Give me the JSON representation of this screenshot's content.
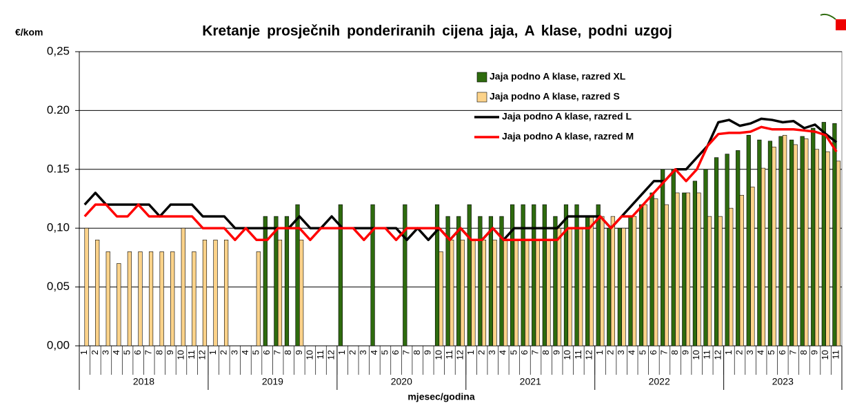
{
  "chart_data": {
    "type": "bar_line",
    "title": "Kretanje prosječnih ponderiranih cijena jaja, A klase, podni uzgoj",
    "y_label": "€/kom",
    "x_label": "mjesec/godina",
    "categories": [
      "1",
      "2",
      "3",
      "4",
      "5",
      "6",
      "7",
      "8",
      "9",
      "10",
      "11",
      "12",
      "1",
      "2",
      "3",
      "4",
      "5",
      "6",
      "7",
      "8",
      "9",
      "10",
      "11",
      "12",
      "1",
      "2",
      "3",
      "4",
      "5",
      "6",
      "7",
      "8",
      "9",
      "10",
      "11",
      "12",
      "1",
      "2",
      "3",
      "4",
      "5",
      "6",
      "7",
      "8",
      "9",
      "10",
      "11",
      "12",
      "1",
      "2",
      "3",
      "4",
      "5",
      "6",
      "7",
      "8",
      "9",
      "10",
      "11",
      "12",
      "1",
      "2",
      "3",
      "4",
      "5",
      "6",
      "7",
      "8",
      "9",
      "10",
      "11"
    ],
    "year_labels": [
      "2018",
      "2019",
      "2020",
      "2021",
      "2022",
      "2023"
    ],
    "ylim": [
      0,
      0.25
    ],
    "yticks": [
      {
        "value": 0,
        "label": "0,00"
      },
      {
        "value": 0.05,
        "label": "0,05"
      },
      {
        "value": 0.1,
        "label": "0,10"
      },
      {
        "value": 0.15,
        "label": "0.15"
      },
      {
        "value": 0.2,
        "label": "0.20"
      },
      {
        "value": 0.25,
        "label": "0,25"
      }
    ],
    "grid": true,
    "legend_position": "upper-right",
    "series": [
      {
        "name": "Jaja podno A klase, razred XL",
        "kind": "bar",
        "color": "#2e6b0e",
        "values": [
          null,
          null,
          null,
          null,
          null,
          null,
          null,
          null,
          null,
          null,
          null,
          null,
          null,
          null,
          null,
          null,
          null,
          0.11,
          0.11,
          0.11,
          0.12,
          null,
          null,
          null,
          0.12,
          null,
          null,
          0.12,
          null,
          null,
          0.12,
          null,
          null,
          0.12,
          0.11,
          0.11,
          0.12,
          0.11,
          0.11,
          0.11,
          0.12,
          0.12,
          0.12,
          0.12,
          0.11,
          0.12,
          0.12,
          0.11,
          0.12,
          0.1,
          0.1,
          0.11,
          0.12,
          0.13,
          0.15,
          0.15,
          0.13,
          0.14,
          0.15,
          0.16,
          0.163,
          0.166,
          0.179,
          0.175,
          0.174,
          0.178,
          0.175,
          0.178,
          0.185,
          0.19,
          0.189
        ]
      },
      {
        "name": "Jaja podno A klase, razred S",
        "kind": "bar",
        "color": "#fcd38a",
        "values": [
          0.1,
          0.09,
          0.08,
          0.07,
          0.08,
          0.08,
          0.08,
          0.08,
          0.08,
          0.1,
          0.08,
          0.09,
          0.09,
          0.09,
          null,
          null,
          0.08,
          null,
          0.09,
          null,
          0.09,
          null,
          null,
          null,
          null,
          null,
          null,
          null,
          null,
          null,
          null,
          null,
          null,
          0.08,
          0.09,
          0.09,
          0.09,
          0.09,
          0.09,
          0.09,
          0.09,
          0.09,
          0.09,
          0.09,
          0.1,
          0.1,
          0.1,
          0.11,
          0.11,
          0.11,
          0.1,
          0.11,
          0.12,
          0.125,
          0.12,
          0.13,
          0.13,
          0.13,
          0.11,
          0.11,
          0.117,
          0.128,
          0.135,
          0.151,
          0.169,
          0.179,
          0.171,
          0.176,
          0.167,
          0.165,
          0.157
        ]
      },
      {
        "name": "Jaja podno A klase, razred L",
        "kind": "line",
        "color": "#000000",
        "values": [
          0.12,
          0.13,
          0.12,
          0.12,
          0.12,
          0.12,
          0.12,
          0.11,
          0.12,
          0.12,
          0.12,
          0.11,
          0.11,
          0.11,
          0.1,
          0.1,
          0.1,
          0.1,
          0.1,
          0.1,
          0.11,
          0.1,
          0.1,
          0.11,
          0.1,
          0.1,
          0.1,
          0.1,
          0.1,
          0.1,
          0.09,
          0.1,
          0.09,
          0.1,
          0.09,
          0.1,
          0.09,
          0.09,
          0.1,
          0.09,
          0.1,
          0.1,
          0.1,
          0.1,
          0.1,
          0.11,
          0.11,
          0.11,
          0.11,
          0.1,
          0.11,
          0.12,
          0.13,
          0.14,
          0.14,
          0.15,
          0.15,
          0.16,
          0.17,
          0.19,
          0.192,
          0.187,
          0.189,
          0.193,
          0.192,
          0.19,
          0.191,
          0.185,
          0.188,
          0.18,
          0.173
        ]
      },
      {
        "name": "Jaja podno A klase, razred M",
        "kind": "line",
        "color": "#ff0000",
        "values": [
          0.11,
          0.12,
          0.12,
          0.11,
          0.11,
          0.12,
          0.11,
          0.11,
          0.11,
          0.11,
          0.11,
          0.1,
          0.1,
          0.1,
          0.09,
          0.1,
          0.09,
          0.09,
          0.1,
          0.1,
          0.1,
          0.09,
          0.1,
          0.1,
          0.1,
          0.1,
          0.09,
          0.1,
          0.1,
          0.09,
          0.1,
          0.1,
          0.1,
          0.1,
          0.09,
          0.1,
          0.09,
          0.09,
          0.1,
          0.09,
          0.09,
          0.09,
          0.09,
          0.09,
          0.09,
          0.1,
          0.1,
          0.1,
          0.11,
          0.1,
          0.11,
          0.11,
          0.12,
          0.13,
          0.14,
          0.15,
          0.14,
          0.15,
          0.17,
          0.18,
          0.181,
          0.181,
          0.182,
          0.186,
          0.184,
          0.184,
          0.184,
          0.183,
          0.182,
          0.179,
          0.165
        ]
      }
    ]
  }
}
